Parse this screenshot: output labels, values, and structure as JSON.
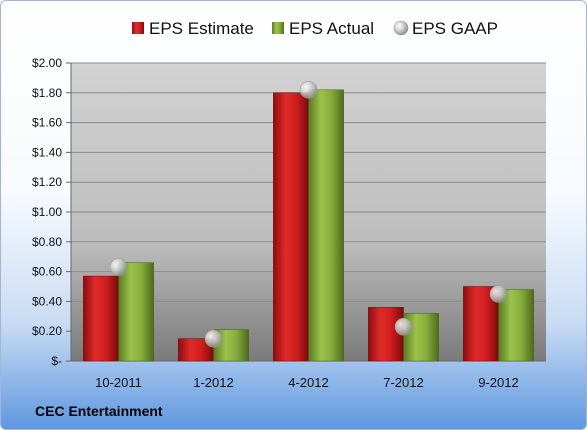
{
  "company": "CEC Entertainment",
  "colors": {
    "estimate": "#c81a1a",
    "actual": "#7ea336",
    "gaap": "#b9b9b9"
  },
  "chart_data": {
    "type": "bar",
    "title": "",
    "xlabel": "",
    "ylabel": "",
    "categories": [
      "10-2011",
      "1-2012",
      "4-2012",
      "7-2012",
      "9-2012"
    ],
    "ylim": [
      0,
      2.0
    ],
    "yticks": [
      0,
      0.2,
      0.4,
      0.6,
      0.8,
      1.0,
      1.2,
      1.4,
      1.6,
      1.8,
      2.0
    ],
    "ytick_labels": [
      "$-",
      "$0.20",
      "$0.40",
      "$0.60",
      "$0.80",
      "$1.00",
      "$1.20",
      "$1.40",
      "$1.60",
      "$1.80",
      "$2.00"
    ],
    "grid": true,
    "legend_position": "top",
    "series": [
      {
        "name": "EPS Estimate",
        "kind": "bar",
        "values": [
          0.57,
          0.15,
          1.8,
          0.36,
          0.5
        ]
      },
      {
        "name": "EPS Actual",
        "kind": "bar",
        "values": [
          0.66,
          0.21,
          1.82,
          0.32,
          0.48
        ]
      },
      {
        "name": "EPS GAAP",
        "kind": "marker",
        "values": [
          0.63,
          0.15,
          1.82,
          0.23,
          0.45
        ]
      }
    ]
  }
}
